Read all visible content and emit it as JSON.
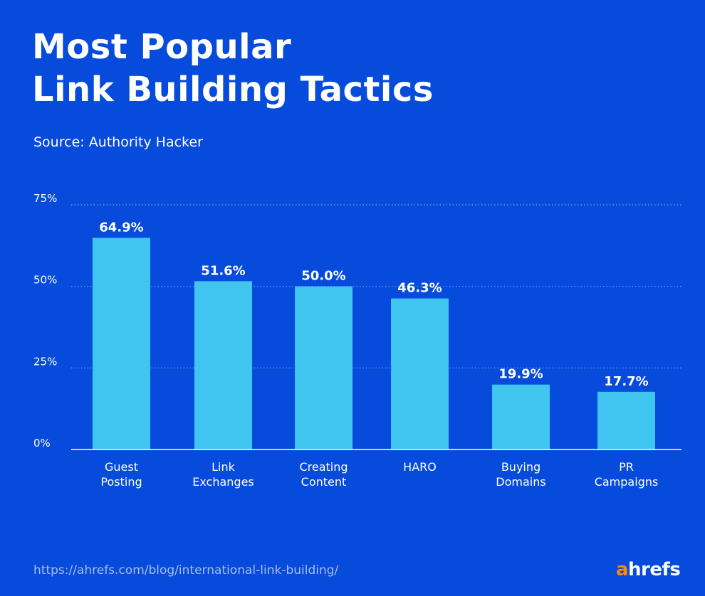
{
  "chart_data": {
    "type": "bar",
    "title": "Most Popular Link Building Tactics",
    "title_lines": [
      "Most Popular",
      "Link Building Tactics"
    ],
    "subtitle": "Source: Authority Hacker",
    "categories": [
      [
        "Guest",
        "Posting"
      ],
      [
        "Link",
        "Exchanges"
      ],
      [
        "Creating",
        "Content"
      ],
      [
        "HARO"
      ],
      [
        "Buying",
        "Domains"
      ],
      [
        "PR",
        "Campaigns"
      ]
    ],
    "values": [
      64.9,
      51.6,
      50.0,
      46.3,
      19.9,
      17.7
    ],
    "data_labels": [
      "64.9%",
      "51.6%",
      "50.0%",
      "46.3%",
      "19.9%",
      "17.7%"
    ],
    "ylim": [
      0,
      75
    ],
    "yticks": [
      0,
      25,
      50,
      75
    ],
    "ytick_labels": [
      "0%",
      "25%",
      "50%",
      "75%"
    ],
    "grid": true,
    "xlabel": "",
    "ylabel": "",
    "colors": {
      "background": "#064bdb",
      "bar": "#40c4f0",
      "text": "#ffffff"
    }
  },
  "footer": {
    "url": "https://ahrefs.com/blog/international-link-building/",
    "logo_a": "a",
    "logo_rest": "hrefs"
  }
}
